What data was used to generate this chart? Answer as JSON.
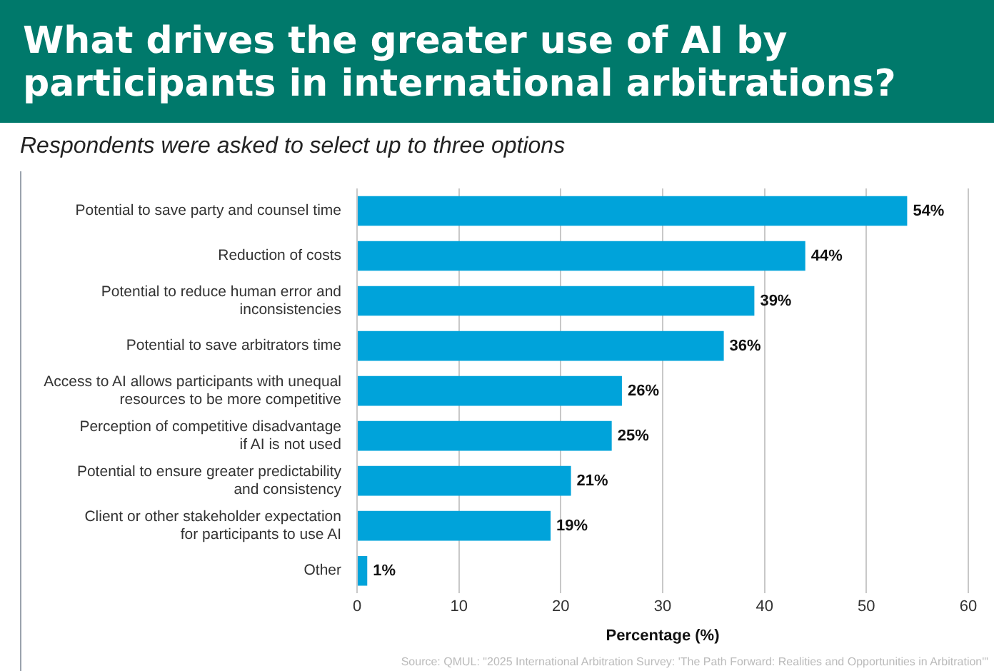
{
  "chart_data": {
    "type": "bar",
    "orientation": "horizontal",
    "title": "What drives the greater use of AI by participants in international arbitrations?",
    "subtitle": "Respondents were asked to select up to three options",
    "categories": [
      "Potential to save party and counsel time",
      "Reduction of costs",
      "Potential to reduce human error and\ninconsistencies",
      "Potential to save arbitrators time",
      "Access to AI allows participants with unequal\nresources to be more competitive",
      "Perception of competitive disadvantage\nif AI is not used",
      "Potential to ensure greater predictability\nand consistency",
      "Client or other stakeholder expectation\nfor participants to use AI",
      "Other"
    ],
    "values": [
      54,
      44,
      39,
      36,
      26,
      25,
      21,
      19,
      1
    ],
    "value_labels": [
      "54%",
      "44%",
      "39%",
      "36%",
      "26%",
      "25%",
      "21%",
      "19%",
      "1%"
    ],
    "color": "#00a3da",
    "xlabel": "Percentage (%)",
    "xlim": [
      0,
      60
    ],
    "xticks": [
      0,
      10,
      20,
      30,
      40,
      50,
      60
    ],
    "grid": "x",
    "annotations": [
      "Source: QMUL: \"2025 International Arbitration Survey: 'The Path Forward: Realities and Opportunities in Arbitration'\""
    ]
  }
}
